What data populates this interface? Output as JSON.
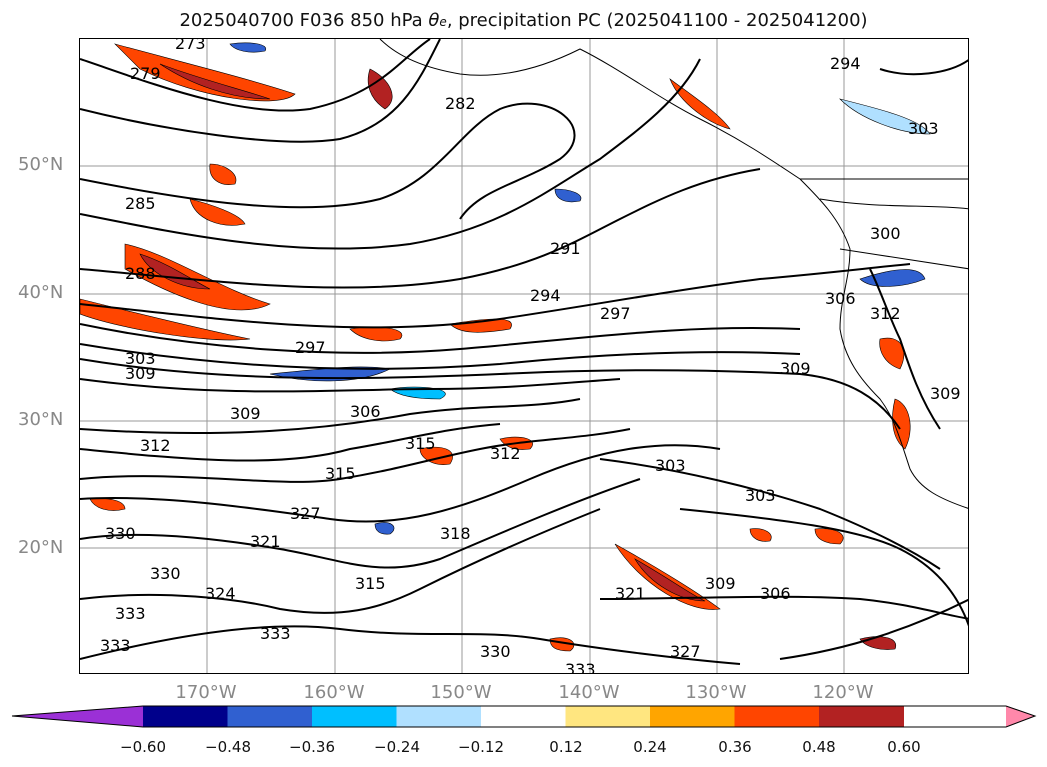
{
  "title": {
    "prefix": "2025040700 F036 850 hPa ",
    "theta": "θ",
    "theta_sub": "e",
    "suffix": ", precipitation PC (2025041100 - 2025041200)"
  },
  "axes": {
    "lat_labels": [
      "50°N",
      "40°N",
      "30°N",
      "20°N"
    ],
    "lon_labels": [
      "170°W",
      "160°W",
      "150°W",
      "140°W",
      "130°W",
      "120°W"
    ]
  },
  "contour_labels": [
    "273",
    "279",
    "285",
    "288",
    "291",
    "294",
    "297",
    "303",
    "309",
    "306",
    "309",
    "312",
    "315",
    "312",
    "315",
    "327",
    "321",
    "330",
    "324",
    "330",
    "333",
    "333",
    "333",
    "330",
    "333",
    "327",
    "321",
    "309",
    "306",
    "303",
    "303",
    "318",
    "315",
    "282",
    "294",
    "303",
    "300",
    "306",
    "312",
    "309",
    "297",
    "309"
  ],
  "colorbar": {
    "ticks": [
      "−0.60",
      "−0.48",
      "−0.36",
      "−0.24",
      "−0.12",
      "0.12",
      "0.24",
      "0.36",
      "0.48",
      "0.60"
    ],
    "colors": [
      "#9b30d6",
      "#00008b",
      "#3060d0",
      "#00bfff",
      "#b0e0ff",
      "#ffffff",
      "#ffe680",
      "#ffa500",
      "#ff4500",
      "#b22222",
      "#ff88aa"
    ]
  }
}
